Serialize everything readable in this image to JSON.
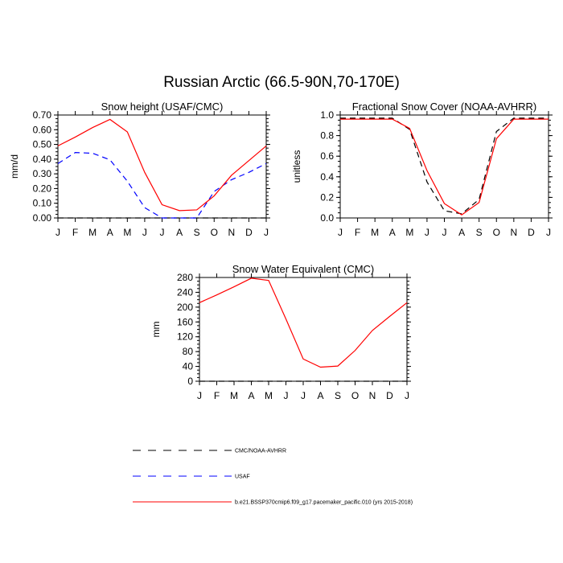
{
  "page": {
    "title": "Russian Arctic (66.5-90N,70-170E)"
  },
  "legend": [
    {
      "label": "CMC/NOAA-AVHRR",
      "color": "#000000",
      "dash": "dashed"
    },
    {
      "label": "USAF",
      "color": "#0000ff",
      "dash": "dashed"
    },
    {
      "label": "b.e21.BSSP370cmip6.f09_g17.pacemaker_pacific.010 (yrs 2015-2018)",
      "color": "#ff0000",
      "dash": "solid"
    }
  ],
  "chart_data": [
    {
      "type": "line",
      "title": "Snow height (USAF/CMC)",
      "xlabel": "",
      "ylabel": "mm/d",
      "categories": [
        "J",
        "F",
        "M",
        "A",
        "M",
        "J",
        "J",
        "A",
        "S",
        "O",
        "N",
        "D",
        "J"
      ],
      "ylim": [
        0,
        0.7
      ],
      "yticks": [
        "0.00",
        "0.10",
        "0.20",
        "0.30",
        "0.40",
        "0.50",
        "0.60",
        "0.70"
      ],
      "series": [
        {
          "name": "CMC/NOAA-AVHRR",
          "color": "#000000",
          "dash": "dashed",
          "values": [
            0,
            0,
            0,
            0,
            0,
            0,
            0,
            0,
            0,
            0,
            0,
            0,
            0
          ]
        },
        {
          "name": "USAF",
          "color": "#0000ff",
          "dash": "dashed",
          "values": [
            0.37,
            0.445,
            0.44,
            0.395,
            0.25,
            0.07,
            0.0,
            0.0,
            0.0,
            0.18,
            0.26,
            0.31,
            0.37
          ]
        },
        {
          "name": "b.e21.BSSP370cmip6.f09_g17.pacemaker_pacific.010 (yrs 2015-2018)",
          "color": "#ff0000",
          "dash": "solid",
          "values": [
            0.49,
            0.55,
            0.615,
            0.67,
            0.585,
            0.31,
            0.09,
            0.05,
            0.055,
            0.15,
            0.29,
            0.39,
            0.49
          ]
        }
      ]
    },
    {
      "type": "line",
      "title": "Fractional Snow Cover (NOAA-AVHRR)",
      "xlabel": "",
      "ylabel": "unitless",
      "categories": [
        "J",
        "F",
        "M",
        "A",
        "M",
        "J",
        "J",
        "A",
        "S",
        "O",
        "N",
        "D",
        "J"
      ],
      "ylim": [
        0,
        1.0
      ],
      "yticks": [
        "0.0",
        "0.2",
        "0.4",
        "0.6",
        "0.8",
        "1.0"
      ],
      "series": [
        {
          "name": "CMC/NOAA-AVHRR",
          "color": "#000000",
          "dash": "dashed",
          "values": [
            0.97,
            0.97,
            0.97,
            0.97,
            0.86,
            0.35,
            0.07,
            0.04,
            0.18,
            0.84,
            0.97,
            0.97,
            0.97
          ]
        },
        {
          "name": "b.e21.BSSP370cmip6.f09_g17.pacemaker_pacific.010 (yrs 2015-2018)",
          "color": "#ff0000",
          "dash": "solid",
          "values": [
            0.96,
            0.96,
            0.96,
            0.96,
            0.87,
            0.46,
            0.14,
            0.03,
            0.15,
            0.77,
            0.96,
            0.96,
            0.96
          ]
        }
      ]
    },
    {
      "type": "line",
      "title": "Snow Water Equivalent (CMC)",
      "xlabel": "",
      "ylabel": "mm",
      "categories": [
        "J",
        "F",
        "M",
        "A",
        "M",
        "J",
        "J",
        "A",
        "S",
        "O",
        "N",
        "D",
        "J"
      ],
      "ylim": [
        0,
        280
      ],
      "yticks": [
        "0",
        "40",
        "80",
        "120",
        "160",
        "200",
        "240",
        "280"
      ],
      "series": [
        {
          "name": "CMC/NOAA-AVHRR",
          "color": "#000000",
          "dash": "dashed",
          "values": [
            0,
            0,
            0,
            0,
            0,
            0,
            0,
            0,
            0,
            0,
            0,
            0,
            0
          ]
        },
        {
          "name": "b.e21.BSSP370cmip6.f09_g17.pacemaker_pacific.010 (yrs 2015-2018)",
          "color": "#ff0000",
          "dash": "solid",
          "values": [
            212,
            233,
            255,
            278,
            272,
            168,
            60,
            38,
            41,
            83,
            137,
            175,
            212
          ]
        }
      ]
    }
  ]
}
